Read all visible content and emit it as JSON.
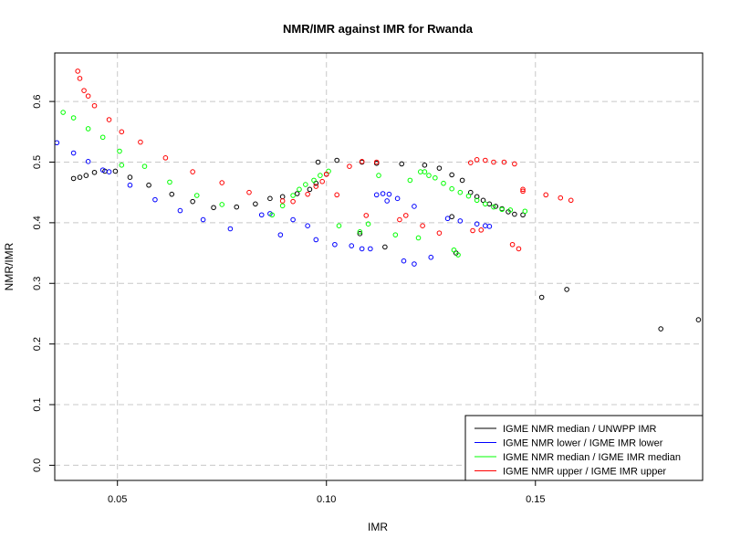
{
  "chart_data": {
    "type": "scatter",
    "title": "NMR/IMR against IMR for Rwanda",
    "xlabel": "IMR",
    "ylabel": "NMR/IMR",
    "xlim": [
      0.035,
      0.19
    ],
    "ylim": [
      -0.025,
      0.68
    ],
    "x_ticks": [
      0.05,
      0.1,
      0.15
    ],
    "x_tick_labels": [
      "0.05",
      "0.10",
      "0.15"
    ],
    "y_ticks": [
      0.0,
      0.1,
      0.2,
      0.3,
      0.4,
      0.5,
      0.6
    ],
    "y_tick_labels": [
      "0.0",
      "0.1",
      "0.2",
      "0.3",
      "0.4",
      "0.5",
      "0.6"
    ],
    "grid": true,
    "legend_position": "bottom-right",
    "marker": "open-circle",
    "series": [
      {
        "name": "IGME NMR median / UNWPP IMR",
        "color": "#000000",
        "points": [
          [
            0.0395,
            0.473
          ],
          [
            0.041,
            0.475
          ],
          [
            0.0425,
            0.478
          ],
          [
            0.0445,
            0.483
          ],
          [
            0.047,
            0.485
          ],
          [
            0.0495,
            0.485
          ],
          [
            0.053,
            0.475
          ],
          [
            0.0575,
            0.462
          ],
          [
            0.063,
            0.447
          ],
          [
            0.068,
            0.435
          ],
          [
            0.073,
            0.425
          ],
          [
            0.0785,
            0.426
          ],
          [
            0.083,
            0.431
          ],
          [
            0.0865,
            0.44
          ],
          [
            0.0895,
            0.443
          ],
          [
            0.093,
            0.448
          ],
          [
            0.096,
            0.455
          ],
          [
            0.0975,
            0.465
          ],
          [
            0.098,
            0.5
          ],
          [
            0.1,
            0.48
          ],
          [
            0.1025,
            0.503
          ],
          [
            0.1085,
            0.5
          ],
          [
            0.112,
            0.498
          ],
          [
            0.118,
            0.497
          ],
          [
            0.1235,
            0.495
          ],
          [
            0.127,
            0.49
          ],
          [
            0.13,
            0.479
          ],
          [
            0.1325,
            0.47
          ],
          [
            0.1345,
            0.45
          ],
          [
            0.136,
            0.443
          ],
          [
            0.1375,
            0.437
          ],
          [
            0.139,
            0.431
          ],
          [
            0.1405,
            0.427
          ],
          [
            0.142,
            0.423
          ],
          [
            0.1435,
            0.418
          ],
          [
            0.145,
            0.414
          ],
          [
            0.147,
            0.413
          ],
          [
            0.1515,
            0.277
          ],
          [
            0.1575,
            0.29
          ],
          [
            0.18,
            0.225
          ],
          [
            0.189,
            0.24
          ],
          [
            0.108,
            0.382
          ],
          [
            0.114,
            0.36
          ],
          [
            0.131,
            0.35
          ],
          [
            0.13,
            0.41
          ]
        ]
      },
      {
        "name": "IGME NMR lower / IGME IMR lower",
        "color": "#0000ff",
        "points": [
          [
            0.0355,
            0.532
          ],
          [
            0.0395,
            0.515
          ],
          [
            0.043,
            0.501
          ],
          [
            0.0465,
            0.487
          ],
          [
            0.048,
            0.484
          ],
          [
            0.053,
            0.462
          ],
          [
            0.059,
            0.438
          ],
          [
            0.065,
            0.42
          ],
          [
            0.0705,
            0.405
          ],
          [
            0.077,
            0.39
          ],
          [
            0.0845,
            0.413
          ],
          [
            0.0865,
            0.415
          ],
          [
            0.089,
            0.38
          ],
          [
            0.092,
            0.405
          ],
          [
            0.0955,
            0.395
          ],
          [
            0.0975,
            0.372
          ],
          [
            0.102,
            0.364
          ],
          [
            0.106,
            0.362
          ],
          [
            0.1085,
            0.357
          ],
          [
            0.1105,
            0.357
          ],
          [
            0.112,
            0.446
          ],
          [
            0.1135,
            0.448
          ],
          [
            0.115,
            0.447
          ],
          [
            0.117,
            0.44
          ],
          [
            0.1185,
            0.337
          ],
          [
            0.121,
            0.332
          ],
          [
            0.125,
            0.343
          ],
          [
            0.129,
            0.407
          ],
          [
            0.132,
            0.403
          ],
          [
            0.136,
            0.398
          ],
          [
            0.138,
            0.395
          ],
          [
            0.139,
            0.394
          ],
          [
            0.1145,
            0.436
          ],
          [
            0.121,
            0.427
          ]
        ]
      },
      {
        "name": "IGME NMR median / IGME IMR median",
        "color": "#00ff00",
        "points": [
          [
            0.037,
            0.582
          ],
          [
            0.0395,
            0.573
          ],
          [
            0.043,
            0.555
          ],
          [
            0.0465,
            0.541
          ],
          [
            0.0505,
            0.518
          ],
          [
            0.051,
            0.495
          ],
          [
            0.0565,
            0.493
          ],
          [
            0.0625,
            0.467
          ],
          [
            0.069,
            0.445
          ],
          [
            0.075,
            0.43
          ],
          [
            0.087,
            0.413
          ],
          [
            0.0895,
            0.428
          ],
          [
            0.092,
            0.445
          ],
          [
            0.0935,
            0.455
          ],
          [
            0.095,
            0.463
          ],
          [
            0.097,
            0.47
          ],
          [
            0.0985,
            0.478
          ],
          [
            0.1005,
            0.485
          ],
          [
            0.103,
            0.395
          ],
          [
            0.108,
            0.385
          ],
          [
            0.11,
            0.398
          ],
          [
            0.1125,
            0.478
          ],
          [
            0.1165,
            0.38
          ],
          [
            0.12,
            0.47
          ],
          [
            0.1225,
            0.484
          ],
          [
            0.1235,
            0.484
          ],
          [
            0.1245,
            0.478
          ],
          [
            0.126,
            0.474
          ],
          [
            0.128,
            0.465
          ],
          [
            0.13,
            0.456
          ],
          [
            0.132,
            0.45
          ],
          [
            0.134,
            0.444
          ],
          [
            0.136,
            0.437
          ],
          [
            0.138,
            0.431
          ],
          [
            0.14,
            0.426
          ],
          [
            0.142,
            0.422
          ],
          [
            0.144,
            0.421
          ],
          [
            0.1475,
            0.419
          ],
          [
            0.1315,
            0.347
          ],
          [
            0.1305,
            0.355
          ],
          [
            0.122,
            0.375
          ]
        ]
      },
      {
        "name": "IGME NMR upper / IGME IMR upper",
        "color": "#ff0000",
        "points": [
          [
            0.0405,
            0.65
          ],
          [
            0.041,
            0.638
          ],
          [
            0.042,
            0.618
          ],
          [
            0.043,
            0.609
          ],
          [
            0.0445,
            0.593
          ],
          [
            0.048,
            0.57
          ],
          [
            0.051,
            0.55
          ],
          [
            0.0555,
            0.533
          ],
          [
            0.0615,
            0.507
          ],
          [
            0.068,
            0.484
          ],
          [
            0.075,
            0.466
          ],
          [
            0.0815,
            0.45
          ],
          [
            0.0895,
            0.436
          ],
          [
            0.092,
            0.435
          ],
          [
            0.0955,
            0.447
          ],
          [
            0.0975,
            0.46
          ],
          [
            0.099,
            0.468
          ],
          [
            0.1,
            0.48
          ],
          [
            0.1025,
            0.446
          ],
          [
            0.1055,
            0.493
          ],
          [
            0.1085,
            0.501
          ],
          [
            0.112,
            0.5
          ],
          [
            0.1175,
            0.405
          ],
          [
            0.119,
            0.412
          ],
          [
            0.123,
            0.395
          ],
          [
            0.127,
            0.383
          ],
          [
            0.1345,
            0.499
          ],
          [
            0.136,
            0.504
          ],
          [
            0.138,
            0.503
          ],
          [
            0.14,
            0.5
          ],
          [
            0.1425,
            0.5
          ],
          [
            0.145,
            0.497
          ],
          [
            0.147,
            0.452
          ],
          [
            0.1445,
            0.364
          ],
          [
            0.146,
            0.357
          ],
          [
            0.1525,
            0.446
          ],
          [
            0.156,
            0.441
          ],
          [
            0.1585,
            0.437
          ],
          [
            0.135,
            0.387
          ],
          [
            0.137,
            0.388
          ],
          [
            0.1095,
            0.412
          ],
          [
            0.147,
            0.455
          ]
        ]
      }
    ]
  }
}
